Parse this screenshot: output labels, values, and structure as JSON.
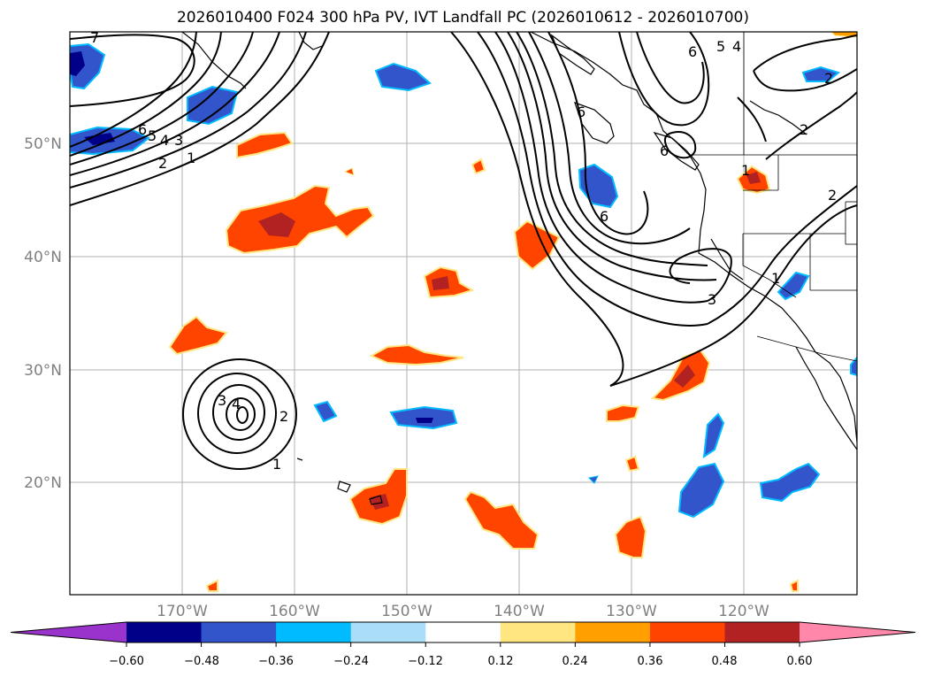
{
  "figure": {
    "title": "2026010400 F024 300 hPa PV, IVT Landfall PC (2026010612 - 2026010700)"
  },
  "axes": {
    "lon_ticks": [
      "170°W",
      "160°W",
      "150°W",
      "140°W",
      "130°W",
      "120°W"
    ],
    "lat_ticks": [
      "50°N",
      "40°N",
      "30°N",
      "20°N"
    ]
  },
  "colorbar": {
    "tick_labels": [
      "−0.60",
      "−0.48",
      "−0.36",
      "−0.24",
      "−0.12",
      "0.12",
      "0.24",
      "0.36",
      "0.48",
      "0.60"
    ],
    "colors": [
      "#9933cc",
      "#000088",
      "#3355cc",
      "#00bbff",
      "#aaddf8",
      "#ffffff",
      "#ffe680",
      "#ffa000",
      "#ff4400",
      "#b22222",
      "#ff88aa"
    ],
    "under_color": "#9933cc",
    "over_color": "#ff88aa"
  },
  "contour_labels": {
    "nw_upper": "7",
    "nw_a": "6",
    "nw_b": "5",
    "nw_c": "4",
    "nw_d": "3",
    "nw_e": "2",
    "nw_f": "1",
    "ridge_a": "6",
    "ridge_b": "6",
    "ridge_c": "6",
    "ne_a": "6",
    "ne_b": "5",
    "ne_c": "4",
    "ne_d": "2",
    "ne_e": "2",
    "ne_f": "1",
    "low_a": "3",
    "low_b": "2",
    "low_c": "1",
    "low_d": "4",
    "coast_a": "3",
    "coast_b": "1",
    "coast_c": "2"
  }
}
